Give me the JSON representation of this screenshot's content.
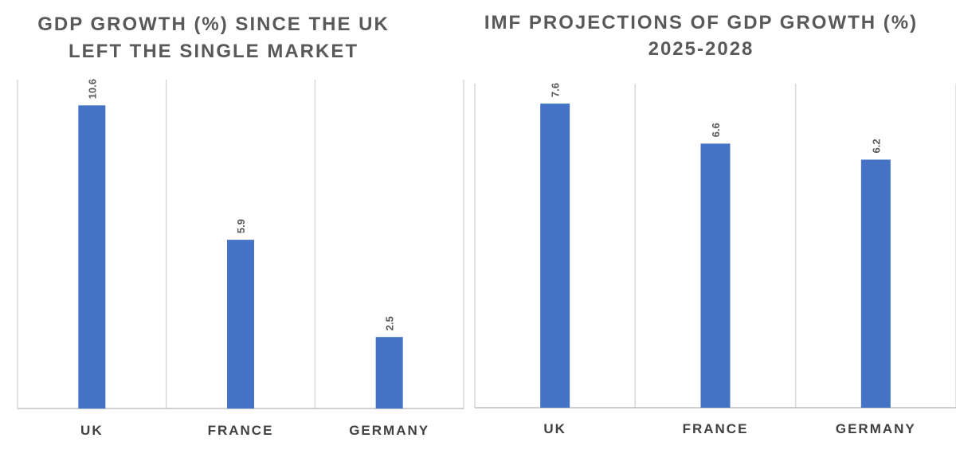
{
  "accent": "#4472c4",
  "chart_data": [
    {
      "type": "bar",
      "title_lines": [
        "GDP GROWTH (%) SINCE THE UK",
        "LEFT THE SINGLE MARKET"
      ],
      "categories": [
        "UK",
        "FRANCE",
        "GERMANY"
      ],
      "values": [
        10.6,
        5.9,
        2.5
      ],
      "data_labels": [
        "10.6",
        "5.9",
        "2.5"
      ],
      "ylim": [
        0,
        11.5
      ],
      "grid": "vertical",
      "legend": "none",
      "color": "#4472c4"
    },
    {
      "type": "bar",
      "title_lines": [
        "IMF PROJECTIONS OF GDP GROWTH (%)",
        "2025-2028"
      ],
      "categories": [
        "UK",
        "FRANCE",
        "GERMANY"
      ],
      "values": [
        7.6,
        6.6,
        6.2
      ],
      "data_labels": [
        "7.6",
        "6.6",
        "6.2"
      ],
      "ylim": [
        0,
        8.1
      ],
      "grid": "vertical",
      "legend": "none",
      "color": "#4472c4"
    }
  ]
}
